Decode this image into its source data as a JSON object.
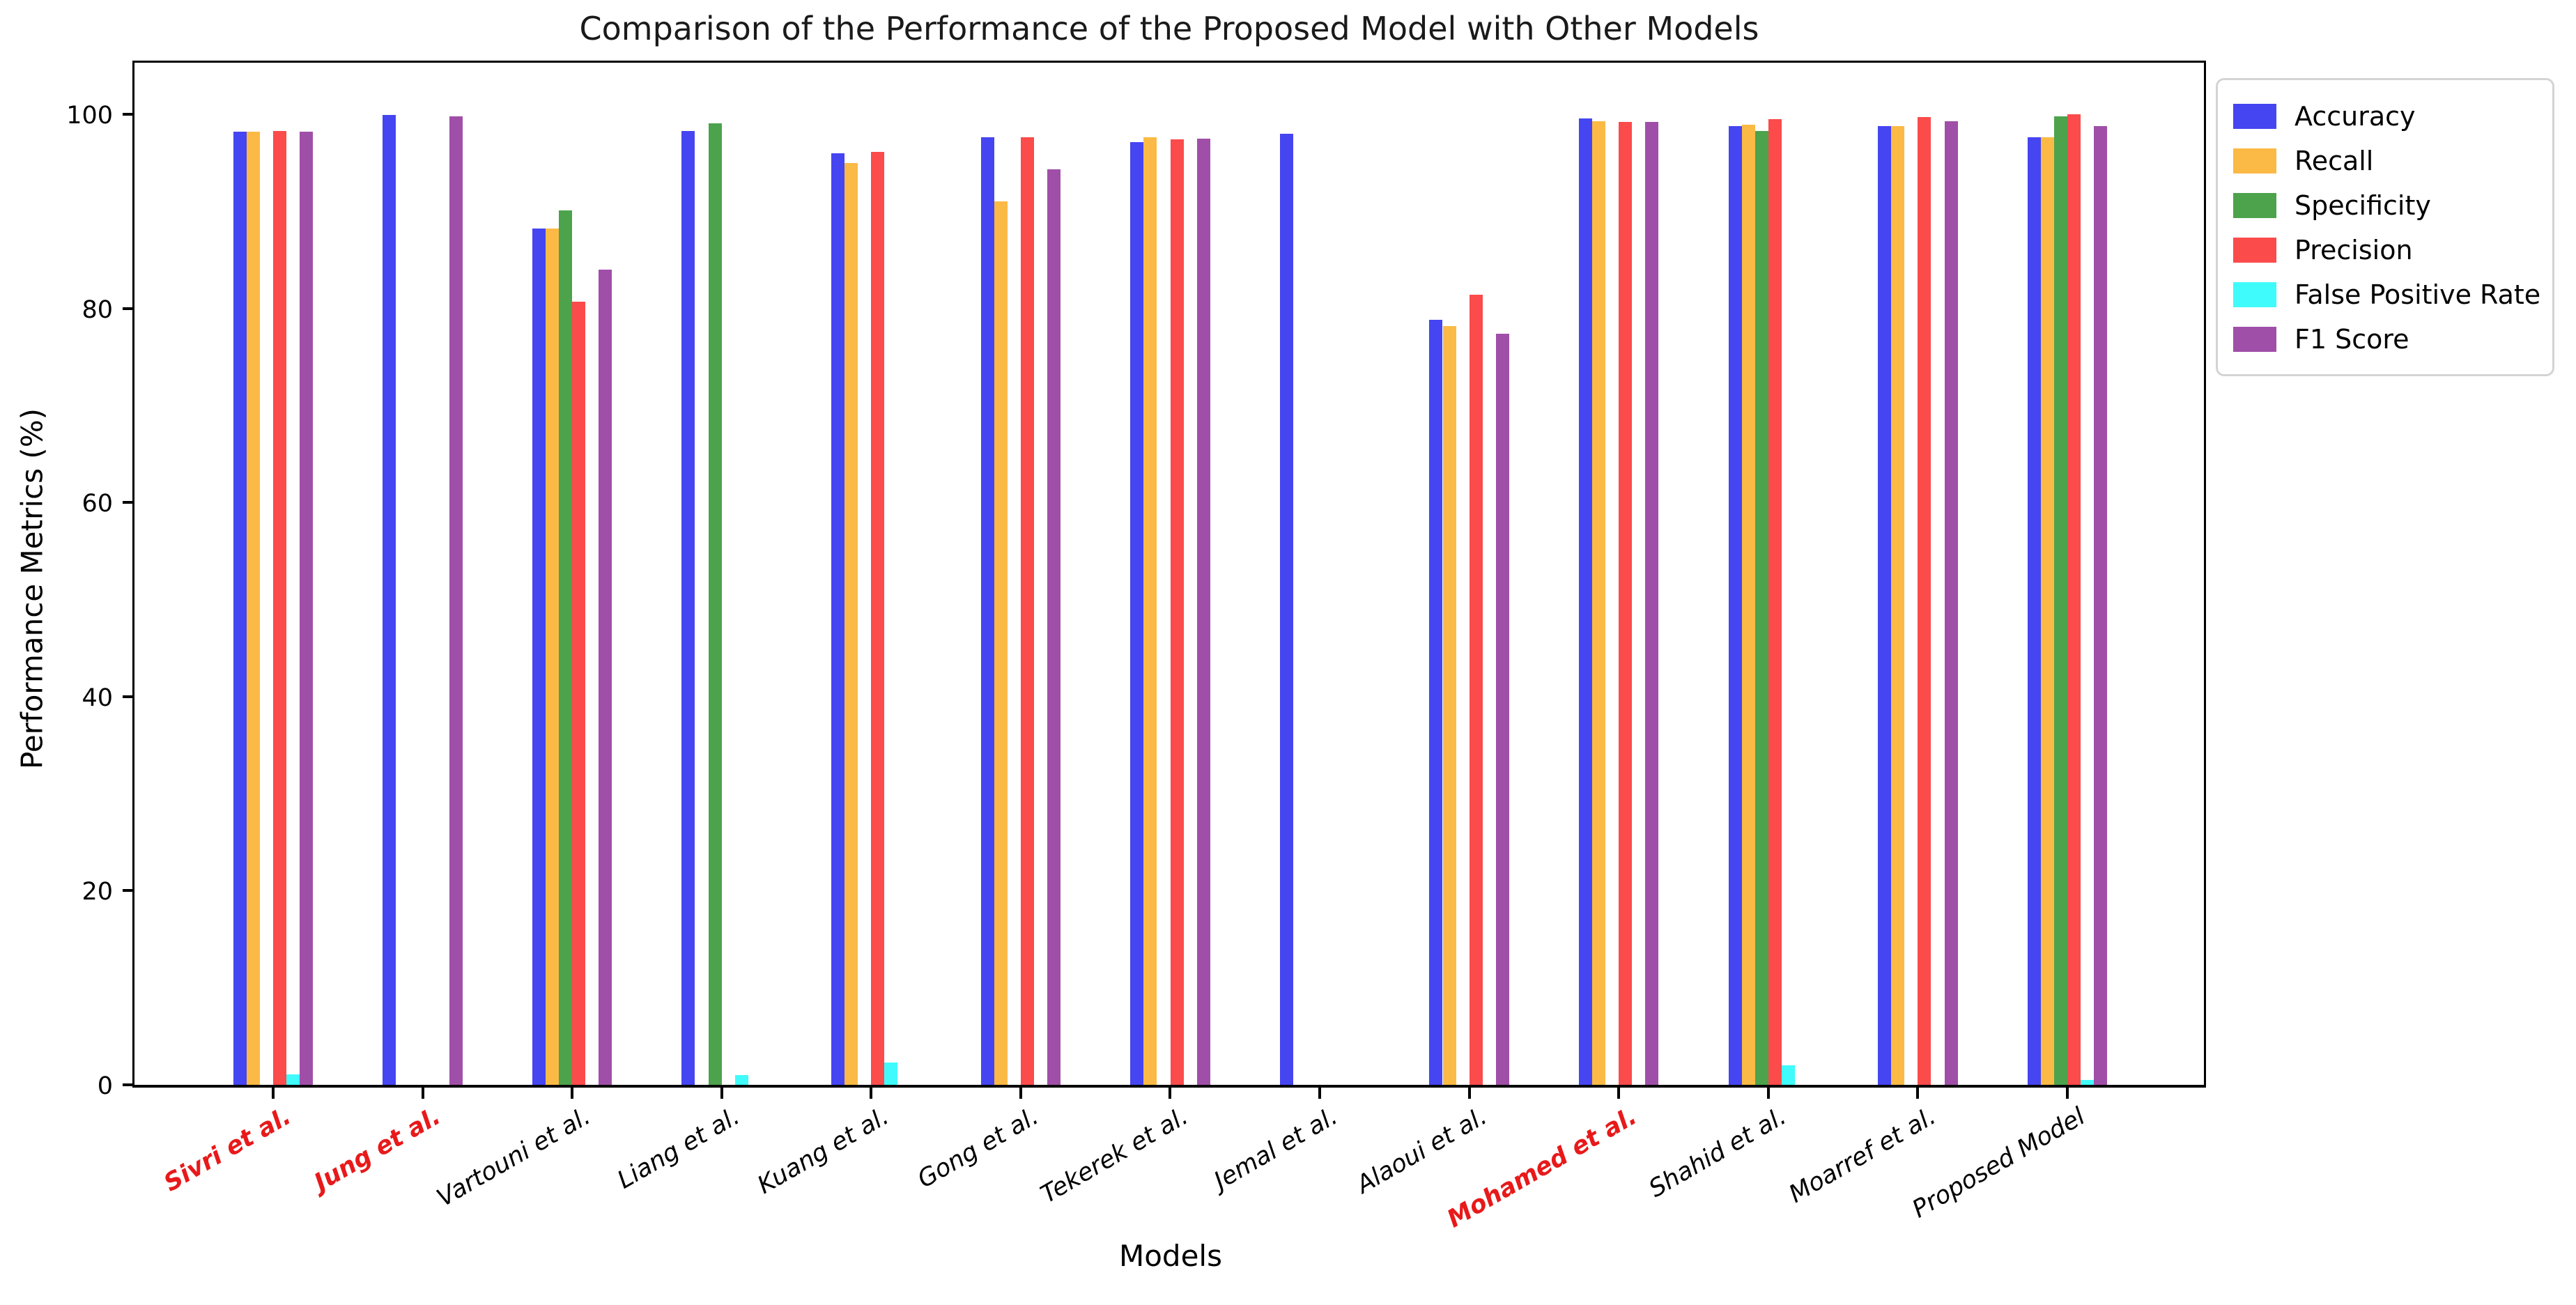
{
  "chart_data": {
    "type": "bar",
    "title": "Comparison of the Performance of the Proposed Model with Other Models",
    "xlabel": "Models",
    "ylabel": "Performance Metrics (%)",
    "ylim": [
      0,
      105
    ],
    "yticks": [
      0,
      20,
      40,
      60,
      80,
      100
    ],
    "grid": false,
    "legend_position": "outside upper right",
    "categories": [
      "Sivri et al.",
      "Jung et al.",
      "Vartouni et al.",
      "Liang et al.",
      "Kuang et al.",
      "Gong et al.",
      "Tekerek et al.",
      "Jemal et al.",
      "Alaoui et al.",
      "Mohamed et al.",
      "Shahid et al.",
      "Moarref et al.",
      "Proposed Model"
    ],
    "highlighted_categories": [
      "Sivri et al.",
      "Jung et al.",
      "Mohamed et al."
    ],
    "highlight_color": "#e8191a",
    "series": [
      {
        "name": "Accuracy",
        "color": "#4545f1",
        "values": [
          98.2,
          99.9,
          88.2,
          98.3,
          96.0,
          97.6,
          97.1,
          98.0,
          78.8,
          99.6,
          98.8,
          98.8,
          97.6
        ]
      },
      {
        "name": "Recall",
        "color": "#fbba45",
        "values": [
          98.2,
          null,
          88.2,
          null,
          95.0,
          91.0,
          97.6,
          null,
          78.2,
          99.3,
          98.9,
          98.8,
          97.6
        ]
      },
      {
        "name": "Specificity",
        "color": "#4ca34c",
        "values": [
          null,
          null,
          90.1,
          99.1,
          null,
          null,
          null,
          null,
          null,
          null,
          98.3,
          null,
          99.8
        ]
      },
      {
        "name": "Precision",
        "color": "#fb4b4b",
        "values": [
          98.3,
          null,
          80.7,
          null,
          96.1,
          97.6,
          97.4,
          null,
          81.4,
          99.2,
          99.5,
          99.7,
          100.0
        ]
      },
      {
        "name": "False Positive Rate",
        "color": "#40fbfb",
        "values": [
          1.1,
          null,
          null,
          1.0,
          2.3,
          null,
          null,
          null,
          null,
          null,
          2.0,
          null,
          0.5
        ]
      },
      {
        "name": "F1 Score",
        "color": "#a04fa8",
        "values": [
          98.2,
          99.8,
          84.0,
          null,
          null,
          94.3,
          97.5,
          null,
          77.4,
          99.2,
          null,
          99.3,
          98.8
        ]
      }
    ]
  }
}
